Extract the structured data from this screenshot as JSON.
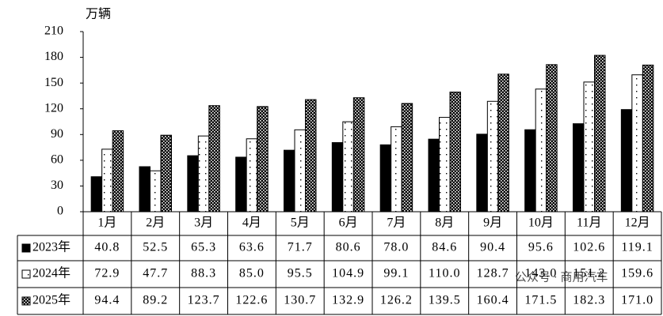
{
  "chart_data": {
    "type": "bar",
    "y_axis_label": "万辆",
    "categories": [
      "1月",
      "2月",
      "3月",
      "4月",
      "5月",
      "6月",
      "7月",
      "8月",
      "9月",
      "10月",
      "11月",
      "12月"
    ],
    "series": [
      {
        "name": "2023年",
        "color": "#000000",
        "values": [
          40.8,
          52.5,
          65.3,
          63.6,
          71.7,
          80.6,
          78.0,
          84.6,
          90.4,
          95.6,
          102.6,
          119.1
        ],
        "value_labels": [
          "40.8",
          "52.5",
          "65.3",
          "63.6",
          "71.7",
          "80.6",
          "78.0",
          "84.6",
          "90.4",
          "95.6",
          "102.6",
          "119.1"
        ]
      },
      {
        "name": "2024年",
        "color": "#ffffff",
        "values": [
          72.9,
          47.7,
          88.3,
          85.0,
          95.5,
          104.9,
          99.1,
          110.0,
          128.7,
          143.0,
          151.2,
          159.6
        ],
        "value_labels": [
          "72.9",
          "47.7",
          "88.3",
          "85.0",
          "95.5",
          "104.9",
          "99.1",
          "110.0",
          "128.7",
          "143.0",
          "151.2",
          "159.6"
        ]
      },
      {
        "name": "2025年",
        "color": "#000000",
        "values": [
          94.4,
          89.2,
          123.7,
          122.6,
          130.7,
          132.9,
          126.2,
          139.5,
          160.4,
          171.5,
          182.3,
          171.0
        ],
        "value_labels": [
          "94.4",
          "89.2",
          "123.7",
          "122.6",
          "130.7",
          "132.9",
          "126.2",
          "139.5",
          "160.4",
          "171.5",
          "182.3",
          "171.0"
        ]
      }
    ],
    "ylim": [
      0,
      210
    ],
    "yticks": [
      0,
      30,
      60,
      90,
      120,
      150,
      180,
      210
    ],
    "grid": false,
    "watermark": "公众号 · 商用汽车"
  }
}
